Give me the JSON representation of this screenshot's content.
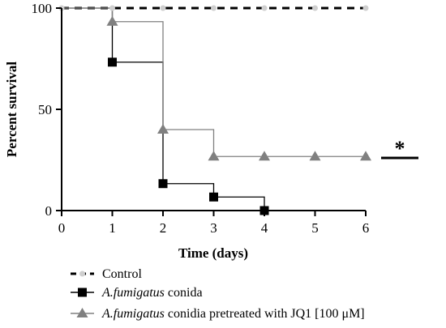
{
  "chart_data": {
    "type": "line",
    "step": true,
    "xlabel": "Time (days)",
    "ylabel": "Percent survival",
    "xlim": [
      0,
      6
    ],
    "ylim": [
      0,
      100
    ],
    "xticks": [
      0,
      1,
      2,
      3,
      4,
      5,
      6
    ],
    "yticks": [
      0,
      50,
      100
    ],
    "grid": false,
    "legend_position": "bottom",
    "series": [
      {
        "name": "Control",
        "label_parts": [
          {
            "text": "Control",
            "italic": false
          }
        ],
        "color": "#000000",
        "dash": true,
        "marker": "circle",
        "marker_color": "#cfcfcf",
        "x": [
          0,
          1,
          2,
          3,
          4,
          5,
          6
        ],
        "y": [
          100,
          100,
          100,
          100,
          100,
          100,
          100
        ]
      },
      {
        "name": "A.fumigatus conida",
        "label_parts": [
          {
            "text": "A.fumigatus",
            "italic": true
          },
          {
            "text": " conida",
            "italic": false
          }
        ],
        "color": "#000000",
        "dash": false,
        "marker": "square",
        "marker_color": "#000000",
        "x": [
          1,
          2,
          3,
          4
        ],
        "y": [
          73.3,
          13.3,
          6.7,
          0
        ],
        "start": {
          "x": 0,
          "y": 100
        }
      },
      {
        "name": "A.fumigatus conidia pretreated with JQ1 [100 μM]",
        "label_parts": [
          {
            "text": "A.fumigatus",
            "italic": true
          },
          {
            "text": " conidia pretreated with JQ1 [100 μM]",
            "italic": false
          }
        ],
        "color": "#808080",
        "dash": false,
        "marker": "triangle",
        "marker_color": "#808080",
        "x": [
          1,
          2,
          3,
          4,
          5,
          6
        ],
        "y": [
          93.3,
          40,
          26.7,
          26.7,
          26.7,
          26.7
        ],
        "start": {
          "x": 0,
          "y": 100
        }
      }
    ],
    "annotations": [
      {
        "text": "*",
        "kind": "significance",
        "y": 26.7
      }
    ]
  }
}
